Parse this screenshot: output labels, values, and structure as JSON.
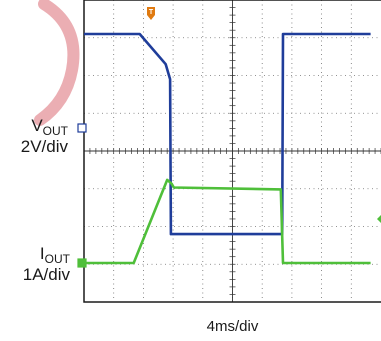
{
  "chart_data": {
    "type": "line",
    "xlabel": "4ms/div",
    "x_unit": "ms",
    "channels": [
      {
        "name": "VOUT",
        "name_main": "V",
        "name_sub": "OUT",
        "scale": "2V/div",
        "color": "#1f3d9a",
        "points": [
          [
            0,
            0
          ],
          [
            7.5,
            0
          ],
          [
            11,
            -0.8
          ],
          [
            11.6,
            -1.2
          ],
          [
            11.7,
            -5.3
          ],
          [
            26.7,
            -5.3
          ],
          [
            26.8,
            0
          ],
          [
            38.6,
            0
          ]
        ]
      },
      {
        "name": "IOUT",
        "name_main": "I",
        "name_sub": "OUT",
        "scale": "1A/div",
        "color": "#4fbf3a",
        "points": [
          [
            0,
            0
          ],
          [
            6.7,
            0
          ],
          [
            11.2,
            2.2
          ],
          [
            11.8,
            2.1
          ],
          [
            12.1,
            2.0
          ],
          [
            26.5,
            1.95
          ],
          [
            26.8,
            0
          ],
          [
            38.6,
            0
          ]
        ]
      }
    ],
    "trigger_marker": "T",
    "grid": true
  },
  "colors": {
    "grid": "#707070",
    "frame": "#1a1a1a",
    "trigger": "#e07a10",
    "watermark": "#e8a0a6"
  }
}
